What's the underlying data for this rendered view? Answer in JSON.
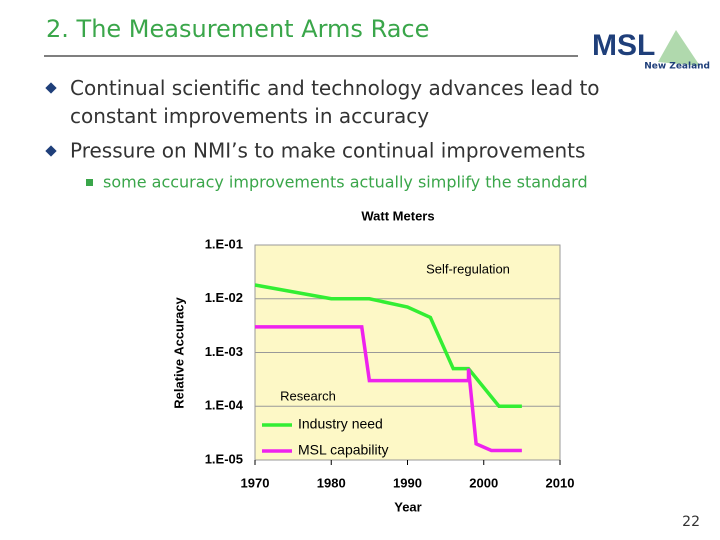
{
  "header": {
    "title": "2. The Measurement Arms Race",
    "logo": "MSL",
    "logo_sub": "New Zealand"
  },
  "bullets": [
    "Continual scientific and technology advances lead to constant improvements in accuracy",
    "Pressure on NMI’s to make continual improvements"
  ],
  "sub_bullets": [
    "some accuracy improvements actually simplify the standard"
  ],
  "page_number": "22",
  "chart_data": {
    "type": "line",
    "title": "Watt Meters",
    "x_label": "Year",
    "y_label": "Relative Accuracy",
    "log_y": true,
    "grid": true,
    "legend": "lower left",
    "xlim": [
      1970,
      2010
    ],
    "xticks": [
      1970,
      1980,
      1990,
      2000,
      2010
    ],
    "ylim": [
      1e-05,
      0.1
    ],
    "yticks": [
      {
        "value": 1e-05,
        "label": "1.E-05"
      },
      {
        "value": 0.0001,
        "label": "1.E-04"
      },
      {
        "value": 0.001,
        "label": "1.E-03"
      },
      {
        "value": 0.01,
        "label": "1.E-02"
      },
      {
        "value": 0.1,
        "label": "1.E-01"
      }
    ],
    "series": [
      {
        "name": "Industry need",
        "color": "#33ee33",
        "x": [
          1970,
          1980,
          1985,
          1990,
          1993,
          1996,
          1998,
          2002,
          2005
        ],
        "values": [
          0.018,
          0.01,
          0.01,
          0.007,
          0.0045,
          0.0005,
          0.0005,
          0.0001,
          0.0001
        ]
      },
      {
        "name": "MSL capability",
        "color": "#ee22ee",
        "x": [
          1970,
          1984,
          1985,
          1998,
          1998,
          1999,
          2001,
          2005
        ],
        "values": [
          0.003,
          0.003,
          0.0003,
          0.0003,
          0.0005,
          2e-05,
          1.5e-05,
          1.5e-05
        ]
      }
    ],
    "annotations": [
      "Self-regulation",
      "Research"
    ]
  }
}
